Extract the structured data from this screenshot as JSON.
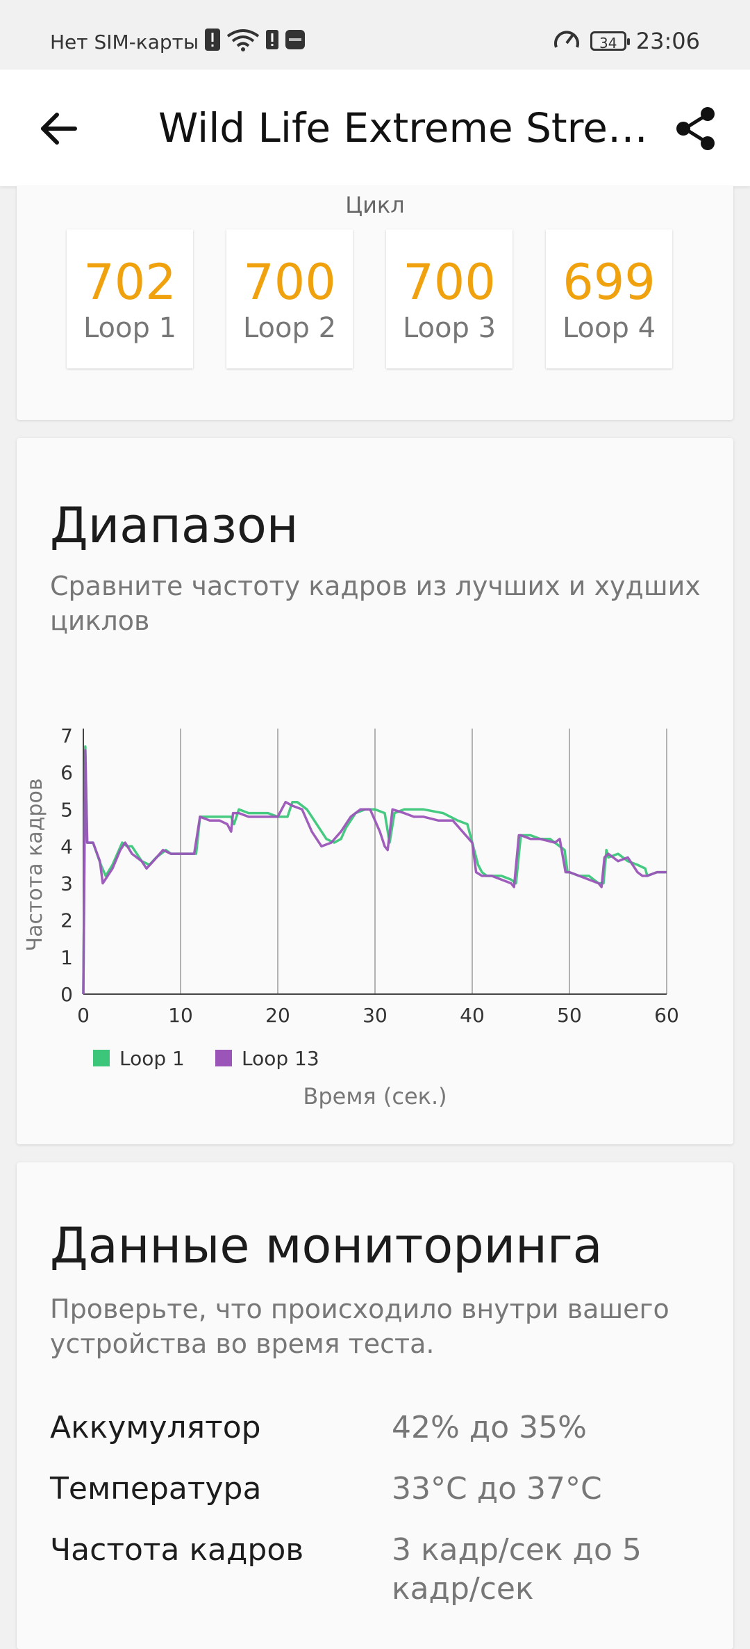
{
  "status_bar": {
    "carrier": "Нет SIM-карты",
    "battery": "34",
    "time": "23:06"
  },
  "app_bar": {
    "title": "Wild Life Extreme Stres…",
    "back_icon": "arrow-left-icon",
    "share_icon": "share-icon"
  },
  "loops_card": {
    "heading": "Цикл",
    "accent_color": "#f0a10e",
    "items": [
      {
        "value": "702",
        "label": "Loop 1"
      },
      {
        "value": "700",
        "label": "Loop 2"
      },
      {
        "value": "700",
        "label": "Loop 3"
      },
      {
        "value": "699",
        "label": "Loop 4"
      }
    ]
  },
  "range_card": {
    "title": "Диапазон",
    "description": "Сравните частоту кадров из лучших и худших циклов"
  },
  "chart_data": {
    "type": "line",
    "xlabel": "Время (сек.)",
    "ylabel": "Частота кадров",
    "xlim": [
      0,
      60
    ],
    "ylim": [
      0,
      7
    ],
    "x_ticks": [
      "0",
      "10",
      "20",
      "30",
      "40",
      "50",
      "60"
    ],
    "y_ticks": [
      "0",
      "1",
      "2",
      "3",
      "4",
      "5",
      "6",
      "7"
    ],
    "grid": "vertical",
    "legend_position": "bottom-left",
    "series": [
      {
        "name": "Loop 1",
        "color": "#3cc679",
        "x": [
          0,
          0.2,
          0.4,
          1,
          1.8,
          2.3,
          3,
          4,
          4.5,
          5,
          6,
          6.8,
          7.5,
          8.5,
          9,
          10,
          11,
          11.6,
          12,
          13,
          14,
          15.2,
          15.5,
          16,
          17,
          18,
          19,
          20,
          21,
          21.5,
          22,
          23,
          24,
          25,
          25.8,
          26.5,
          27,
          28,
          29,
          30,
          31,
          31.5,
          32,
          33,
          34,
          35,
          37,
          38.5,
          39.5,
          40.2,
          40.6,
          41,
          41.5,
          42,
          43,
          44,
          44.5,
          45,
          45.2,
          46,
          47,
          48,
          49.5,
          49.8,
          50,
          51,
          52,
          53,
          53.5,
          53.8,
          54,
          55,
          56,
          57,
          57.8,
          58,
          59,
          60
        ],
        "values": [
          0,
          6.7,
          4.1,
          4.1,
          3.5,
          3.2,
          3.5,
          4.1,
          4.0,
          4.0,
          3.6,
          3.5,
          3.7,
          3.9,
          3.8,
          3.8,
          3.8,
          3.8,
          4.8,
          4.8,
          4.8,
          4.8,
          4.6,
          5.0,
          4.9,
          4.9,
          4.9,
          4.8,
          4.8,
          5.2,
          5.2,
          5.0,
          4.6,
          4.2,
          4.1,
          4.2,
          4.5,
          4.9,
          5.0,
          5.0,
          4.9,
          4.1,
          4.9,
          5.0,
          5.0,
          5.0,
          4.9,
          4.7,
          4.6,
          3.9,
          3.5,
          3.3,
          3.2,
          3.2,
          3.2,
          3.1,
          3.0,
          4.3,
          4.3,
          4.3,
          4.2,
          4.2,
          3.9,
          3.3,
          3.3,
          3.2,
          3.2,
          3.0,
          3.0,
          3.9,
          3.7,
          3.8,
          3.6,
          3.5,
          3.4,
          3.2,
          3.3,
          3.3
        ]
      },
      {
        "name": "Loop 13",
        "color": "#9b55b8",
        "x": [
          0,
          0.2,
          0.4,
          1,
          1.7,
          2,
          3,
          3.8,
          4.3,
          5,
          6,
          6.5,
          7.2,
          8.2,
          9,
          10,
          11,
          11.4,
          12,
          13,
          14,
          14.8,
          15.2,
          15.4,
          16,
          17,
          18,
          19,
          20,
          20.8,
          21.5,
          22.5,
          23.5,
          24.5,
          25.5,
          26.5,
          27.5,
          28.5,
          29.5,
          30.5,
          31,
          31.3,
          31.8,
          33,
          34,
          35,
          36.5,
          38,
          39,
          40,
          40.4,
          41,
          42,
          43,
          44,
          44.3,
          44.8,
          45,
          46,
          47,
          48.5,
          49,
          49.6,
          50,
          51,
          52,
          53,
          53.3,
          53.6,
          54,
          55,
          56,
          57,
          57.5,
          58,
          59,
          60
        ],
        "values": [
          0,
          6.6,
          4.1,
          4.1,
          3.6,
          3.0,
          3.4,
          3.9,
          4.1,
          3.8,
          3.6,
          3.4,
          3.6,
          3.9,
          3.8,
          3.8,
          3.8,
          3.8,
          4.8,
          4.7,
          4.7,
          4.6,
          4.4,
          4.9,
          4.9,
          4.8,
          4.8,
          4.8,
          4.8,
          5.2,
          5.1,
          5.0,
          4.4,
          4.0,
          4.1,
          4.4,
          4.8,
          5.0,
          5.0,
          4.4,
          4.0,
          3.9,
          5.0,
          4.9,
          4.8,
          4.8,
          4.7,
          4.7,
          4.4,
          4.1,
          3.3,
          3.2,
          3.2,
          3.1,
          3.0,
          2.9,
          4.3,
          4.3,
          4.2,
          4.2,
          4.1,
          4.2,
          3.3,
          3.3,
          3.2,
          3.1,
          3.0,
          2.9,
          3.7,
          3.8,
          3.6,
          3.7,
          3.3,
          3.2,
          3.2,
          3.3,
          3.3
        ]
      }
    ]
  },
  "monitor_card": {
    "title": "Данные мониторинга",
    "description": "Проверьте, что происходило внутри вашего устройства во время теста.",
    "rows": [
      {
        "label": "Аккумулятор",
        "value": "42% до 35%"
      },
      {
        "label": "Температура",
        "value": "33°C до 37°C"
      },
      {
        "label": "Частота кадров",
        "value": "3 кадр/сек до 5 кадр/сек"
      }
    ]
  }
}
